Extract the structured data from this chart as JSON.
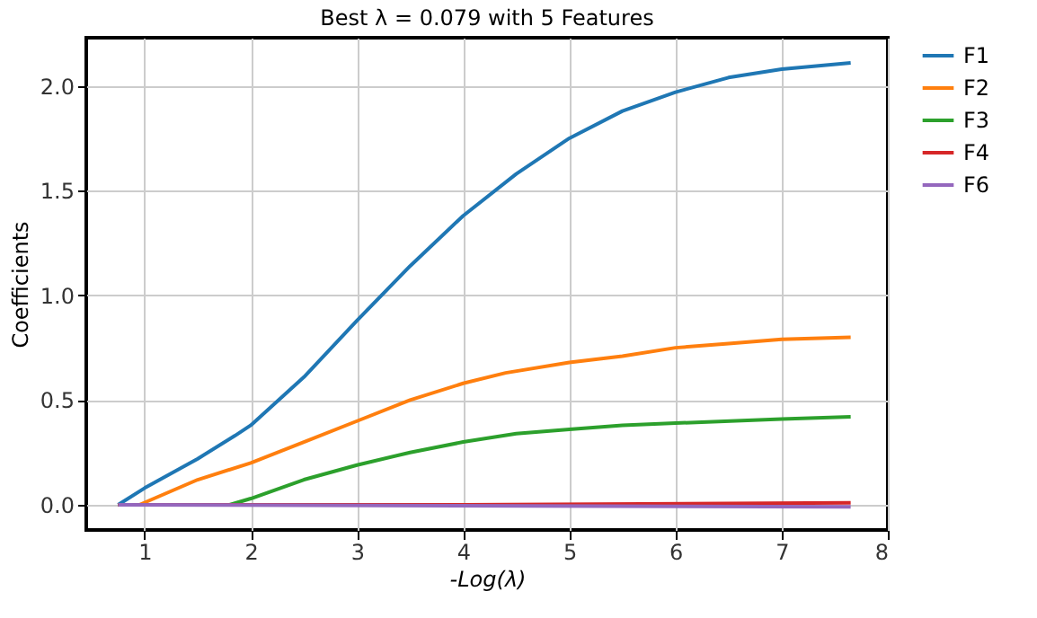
{
  "chart_data": {
    "type": "line",
    "title": "Best λ = 0.079 with 5 Features",
    "xlabel": "-Log(λ)",
    "ylabel": "Coefficients",
    "xlim": [
      0.45,
      8
    ],
    "xticks": [
      1,
      2,
      3,
      4,
      5,
      6,
      7,
      8
    ],
    "ylim": [
      -0.12,
      2.23
    ],
    "yticks": [
      {
        "value": 0,
        "label": "0.0"
      },
      0.5,
      {
        "value": 1,
        "label": "1.0"
      },
      1.5,
      {
        "value": 2,
        "label": "2.0"
      }
    ],
    "grid": true,
    "legend": "right",
    "series": [
      {
        "name": "F1",
        "color": "#1f77b4",
        "x": [
          0.75,
          1,
          1.5,
          1.85,
          2,
          2.5,
          3,
          3.5,
          4,
          4.5,
          5,
          5.5,
          6,
          6.5,
          7,
          7.65
        ],
        "values": [
          0,
          0.08,
          0.22,
          0.33,
          0.38,
          0.61,
          0.88,
          1.14,
          1.38,
          1.58,
          1.75,
          1.88,
          1.97,
          2.04,
          2.08,
          2.11
        ]
      },
      {
        "name": "F2",
        "color": "#ff7f0e",
        "x": [
          0.75,
          0.95,
          1.5,
          2,
          2.5,
          3,
          3.5,
          4,
          4.4,
          5,
          5.5,
          6,
          6.5,
          7,
          7.65
        ],
        "values": [
          0,
          0,
          0.12,
          0.2,
          0.3,
          0.4,
          0.5,
          0.58,
          0.63,
          0.68,
          0.71,
          0.75,
          0.77,
          0.79,
          0.8
        ]
      },
      {
        "name": "F3",
        "color": "#2ca02c",
        "x": [
          0.75,
          1.8,
          2,
          2.5,
          3,
          3.5,
          4,
          4.5,
          5,
          5.5,
          6,
          7,
          7.65
        ],
        "values": [
          0,
          0,
          0.03,
          0.12,
          0.19,
          0.25,
          0.3,
          0.34,
          0.36,
          0.38,
          0.39,
          0.41,
          0.42
        ]
      },
      {
        "name": "F4",
        "color": "#d62728",
        "x": [
          0.75,
          4,
          7.65
        ],
        "values": [
          0,
          0,
          0.01
        ]
      },
      {
        "name": "F6",
        "color": "#9467bd",
        "x": [
          0.75,
          7.65
        ],
        "values": [
          0,
          -0.01
        ]
      }
    ]
  }
}
